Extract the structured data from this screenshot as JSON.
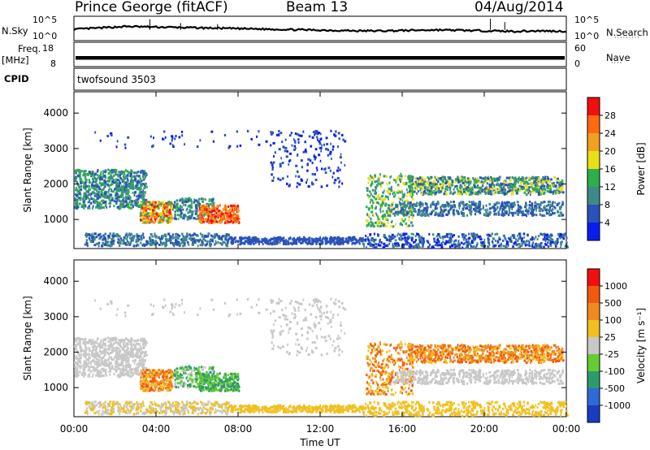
{
  "header": {
    "station": "Prince George (fitACF)",
    "beam": "Beam 13",
    "date": "04/Aug/2014"
  },
  "left_labels": {
    "nsky": "N.Sky",
    "freq_line1": "Freq.",
    "freq_line2": "[MHz]",
    "cpid": "CPID"
  },
  "right_labels": {
    "nsearch": "N.Search",
    "nsearch_dots": "·········",
    "nave": "Nave",
    "nave_dots": "····"
  },
  "cpid_text": "twofsound 3503",
  "chart_data": [
    {
      "type": "line",
      "name": "noise-strip",
      "left_ticks": [
        "10^5",
        "10^0"
      ],
      "right_ticks": [
        "10^5",
        "10^0"
      ],
      "scale": "log",
      "series": [
        {
          "name": "N.Sky",
          "y_log10": [
            2.3,
            2.6,
            2.9,
            2.8,
            2.7,
            2.6,
            2.5,
            2.4,
            2.3,
            2.2,
            2.1,
            2.0,
            2.0,
            2.1,
            2.2,
            2.1,
            2.0,
            1.9,
            2.0,
            1.9
          ]
        },
        {
          "name": "N.Search",
          "y_log10": [
            2.0,
            2.2,
            2.5,
            2.4,
            2.3,
            2.2,
            2.1,
            2.0,
            2.0,
            1.9,
            1.8,
            1.8,
            1.8,
            1.9,
            2.0,
            1.9,
            1.8,
            1.8,
            1.8,
            1.7
          ]
        }
      ]
    },
    {
      "type": "line",
      "name": "frequency-strip",
      "left_ticks": [
        "18",
        "8"
      ],
      "right_ticks": [
        "60",
        "0"
      ],
      "ylim_left": [
        8,
        18
      ],
      "ylim_right": [
        0,
        60
      ],
      "series": [
        {
          "name": "Freq",
          "note_visible": "dense band",
          "values": [
            11.5,
            12.0
          ]
        },
        {
          "name": "Nave",
          "values": [
            20
          ]
        }
      ]
    },
    {
      "type": "heatmap",
      "name": "power",
      "ylabel": "Slant Range [km]",
      "ylim": [
        180,
        4600
      ],
      "yticks": [
        1000,
        2000,
        3000,
        4000
      ],
      "colorbar_label": "Power [dB]",
      "colorbar_ticks": [
        4,
        8,
        12,
        16,
        20,
        24,
        28
      ],
      "colors": [
        "#0a1df0",
        "#2a52b8",
        "#3e8a8a",
        "#2fae4c",
        "#e8e016",
        "#f2a020",
        "#ff6a10",
        "#f01010"
      ]
    },
    {
      "type": "heatmap",
      "name": "velocity",
      "ylabel": "Slant Range [km]",
      "ylim": [
        180,
        4600
      ],
      "yticks": [
        1000,
        2000,
        3000,
        4000
      ],
      "colorbar_label": "Velocity [m s^-1]",
      "colorbar_ticks": [
        1000,
        500,
        100,
        25,
        -25,
        -100,
        -500,
        -1000
      ],
      "colors": [
        "#1a3cc0",
        "#2f6ad8",
        "#2e9a6c",
        "#66cc33",
        "#c8c8c8",
        "#f0c020",
        "#f08a20",
        "#f05a10",
        "#f01010"
      ]
    }
  ],
  "x_axis": {
    "label": "Time UT",
    "ticks": [
      "00:00",
      "04:00",
      "08:00",
      "12:00",
      "16:00",
      "20:00",
      "00:00"
    ],
    "xlim": [
      0,
      24
    ]
  }
}
